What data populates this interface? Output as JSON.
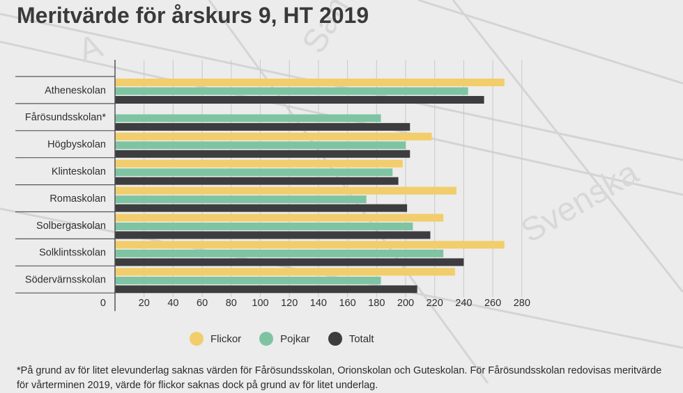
{
  "title": "Meritvärde för årskurs 9, HT 2019",
  "chart_data": {
    "type": "bar",
    "orientation": "horizontal",
    "title": "Meritvärde för årskurs 9, HT 2019",
    "xlabel": "",
    "ylabel": "",
    "xlim": [
      0,
      280
    ],
    "xticks": [
      0,
      20,
      40,
      60,
      80,
      100,
      120,
      140,
      160,
      180,
      200,
      220,
      240,
      260,
      280
    ],
    "grid": true,
    "legend_position": "bottom",
    "categories": [
      "Atheneskolan",
      "Fårösundsskolan*",
      "Högbyskolan",
      "Klinteskolan",
      "Romaskolan",
      "Solbergaskolan",
      "Solklintsskolan",
      "Södervärnsskolan"
    ],
    "series": [
      {
        "name": "Flickor",
        "color": "#f2cd6b",
        "values": [
          268,
          null,
          218,
          198,
          235,
          226,
          268,
          234
        ]
      },
      {
        "name": "Pojkar",
        "color": "#7fc4a2",
        "values": [
          243,
          183,
          200,
          191,
          173,
          205,
          226,
          183
        ]
      },
      {
        "name": "Totalt",
        "color": "#3d3d3f",
        "values": [
          254,
          203,
          203,
          195,
          201,
          217,
          240,
          208
        ]
      }
    ]
  },
  "footnote": "*På grund av för litet elevunderlag saknas värden för Fårösundsskolan, Orionskolan och Guteskolan. För Fårösundsskolan redovisas meritvärde för vårterminen 2019, värde för flickor saknas dock på grund av för litet underlag."
}
